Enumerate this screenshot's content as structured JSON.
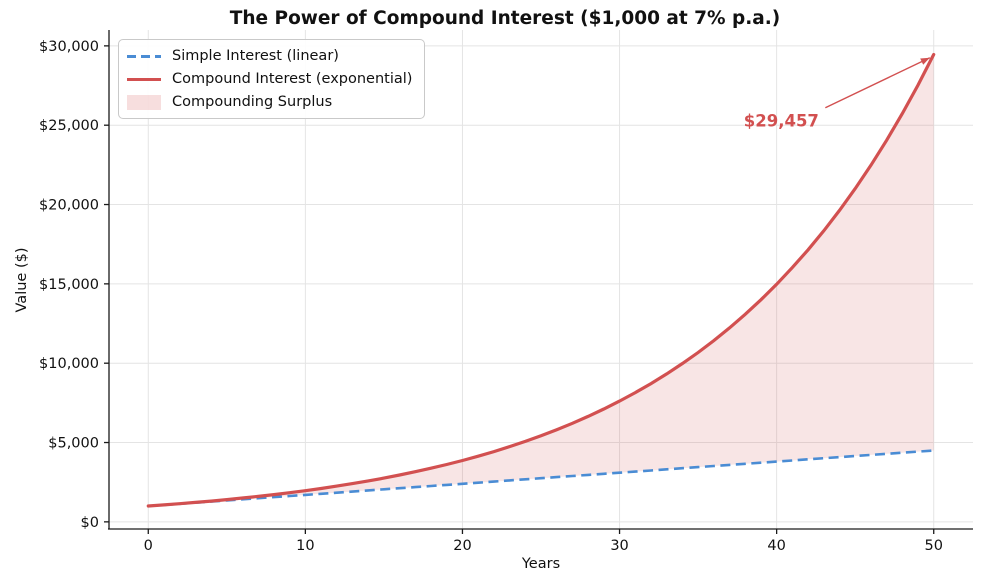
{
  "chart_data": {
    "type": "line",
    "title": "The Power of Compound Interest ($1,000 at 7% p.a.)",
    "xlabel": "Years",
    "ylabel": "Value ($)",
    "xlim": [
      -2.5,
      52.5
    ],
    "ylim": [
      -450,
      31000
    ],
    "x_ticks": [
      0,
      10,
      20,
      30,
      40,
      50
    ],
    "x_tick_labels": [
      "0",
      "10",
      "20",
      "30",
      "40",
      "50"
    ],
    "y_ticks": [
      0,
      5000,
      10000,
      15000,
      20000,
      25000,
      30000
    ],
    "y_tick_labels": [
      "$0",
      "$5,000",
      "$10,000",
      "$15,000",
      "$20,000",
      "$25,000",
      "$30,000"
    ],
    "grid": true,
    "legend_position": "upper left",
    "x": [
      0,
      1,
      2,
      3,
      4,
      5,
      6,
      7,
      8,
      9,
      10,
      11,
      12,
      13,
      14,
      15,
      16,
      17,
      18,
      19,
      20,
      21,
      22,
      23,
      24,
      25,
      26,
      27,
      28,
      29,
      30,
      31,
      32,
      33,
      34,
      35,
      36,
      37,
      38,
      39,
      40,
      41,
      42,
      43,
      44,
      45,
      46,
      47,
      48,
      49,
      50
    ],
    "series": [
      {
        "name": "Simple Interest (linear)",
        "style": "dashed",
        "color": "#4a8cd4",
        "line_width": 2.6,
        "values": [
          1000,
          1070,
          1140,
          1210,
          1280,
          1350,
          1420,
          1490,
          1560,
          1630,
          1700,
          1770,
          1840,
          1910,
          1980,
          2050,
          2120,
          2190,
          2260,
          2330,
          2400,
          2470,
          2540,
          2610,
          2680,
          2750,
          2820,
          2890,
          2960,
          3030,
          3100,
          3170,
          3240,
          3310,
          3380,
          3450,
          3520,
          3590,
          3660,
          3730,
          3800,
          3870,
          3940,
          4010,
          4080,
          4150,
          4220,
          4290,
          4360,
          4430,
          4500
        ]
      },
      {
        "name": "Compound Interest (exponential)",
        "style": "solid",
        "color": "#d25050",
        "line_width": 3.2,
        "values": [
          1000,
          1070,
          1145,
          1225,
          1311,
          1403,
          1501,
          1606,
          1718,
          1838,
          1967,
          2105,
          2252,
          2410,
          2579,
          2759,
          2952,
          3159,
          3380,
          3617,
          3870,
          4141,
          4430,
          4741,
          5072,
          5427,
          5807,
          6214,
          6649,
          7114,
          7612,
          8145,
          8715,
          9325,
          9978,
          10677,
          11424,
          12224,
          13079,
          13995,
          14974,
          16023,
          17144,
          18344,
          19628,
          21002,
          22473,
          24046,
          25729,
          27530,
          29457
        ]
      }
    ],
    "fill_between": {
      "name": "Compounding Surplus",
      "color": "#d25050",
      "opacity": 0.15,
      "between": [
        "Compound Interest (exponential)",
        "Simple Interest (linear)"
      ]
    },
    "annotation": {
      "text": "$29,457",
      "color": "#d25050",
      "point": [
        50,
        29457
      ],
      "arrow_start": [
        43.1,
        26100
      ],
      "arrow_tip": [
        49.75,
        29250
      ],
      "label_xy": [
        40.3,
        25280
      ]
    }
  }
}
